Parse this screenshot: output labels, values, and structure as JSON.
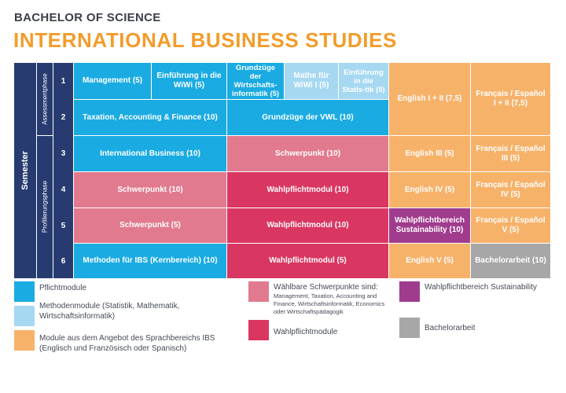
{
  "header": {
    "subtitle": "BACHELOR OF SCIENCE",
    "title": "INTERNATIONAL BUSINESS STUDIES"
  },
  "axis": {
    "semester": "Semester",
    "phase_assessment": "Assessmentphase",
    "phase_profile": "Profilierungsphase"
  },
  "rows": [
    "1",
    "2",
    "3",
    "4",
    "5",
    "6"
  ],
  "modules": {
    "management": "Management (5)",
    "wiwi_intro": "Einführung in die WiWi (5)",
    "wirtschaftsinformatik": "Grundzüge der Wirtschafts-informatik (5)",
    "mathe": "Mathe für WiWi I (5)",
    "statistik": "Einführung in die Statis-tik (5)",
    "english_1_2": "English I + II (7,5)",
    "french_spanish_1": "Français / Español I + II (7,5)",
    "taxation": "Taxation, Accounting & Finance (10)",
    "vwl": "Grundzüge der VWL (10)",
    "intl_business": "International Business (10)",
    "schwerpunkt_r3": "Schwerpunkt (10)",
    "english_3": "English III (5)",
    "french_spanish_3": "Français / Español III (5)",
    "schwerpunkt_r4": "Schwerpunkt (10)",
    "wahlpflicht_r4": "Wahlpflichtmodul (10)",
    "english_4": "English IV (5)",
    "french_spanish_4": "Français / Español IV (5)",
    "schwerpunkt_r5": "Schwerpunkt (5)",
    "wahlpflicht_r5": "Wahlpflichtmodul (10)",
    "sustainability": "Wahlpflichtbereich Sustainability (10)",
    "french_spanish_5": "Français / Español V (5)",
    "methoden_ibs": "Methoden für IBS (Kernbereich) (10)",
    "wahlpflicht_r6": "Wahlpflichtmodul (5)",
    "english_5": "English V (5)",
    "bachelorarbeit": "Bachelorarbeit (10)"
  },
  "legend": {
    "pflicht": "Pflichtmodule",
    "methoden": "Methodenmodule (Statistik, Mathematik, Wirtschaftsinformatik)",
    "sprach": "Module aus dem Angebot des Sprachbereichs IBS (Englisch und Französisch oder Spanisch)",
    "schwerpunkte": "Wählbare Schwerpunkte sind:",
    "schwerpunkte_detail": "Management, Taxation, Accounting and Finance, Wirtschaftsinformatik, Economics oder Wirtschaftspädagogik",
    "wahlpflicht": "Wahlpflichtmodule",
    "sustainability": "Wahlpflichtbereich Sustainability",
    "bachelorarbeit": "Bachelorarbeit"
  },
  "colors": {
    "blue": "#1aabe2",
    "light_blue": "#a6d8f2",
    "orange": "#f7b26a",
    "pink": "#e17a8e",
    "crimson": "#d93762",
    "purple": "#a03c8e",
    "gray": "#a7a7a7",
    "navy": "#283b71",
    "title_orange": "#f39c2a"
  }
}
